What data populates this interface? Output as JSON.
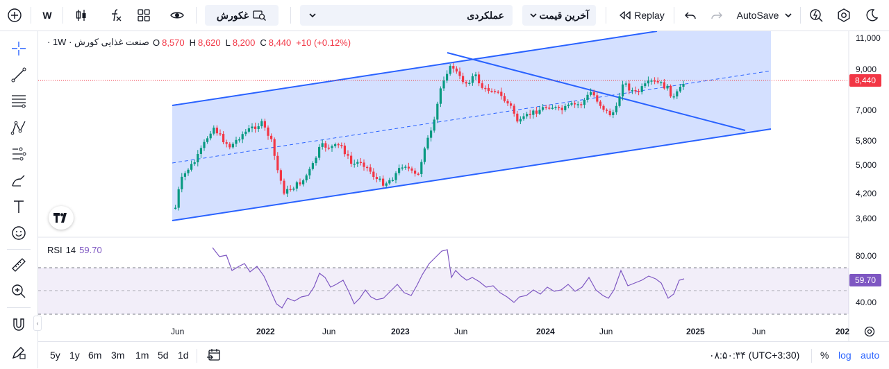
{
  "toolbar": {
    "interval": "W",
    "symbol": "غکورش",
    "layout": "عملکردی",
    "price_type": "آخرین قیمت",
    "replay": "Replay",
    "autosave": "AutoSave"
  },
  "legend": {
    "title": "صنعت غذایی کورش · 1W ·",
    "o_label": "O",
    "o": "8,570",
    "h_label": "H",
    "h": "8,620",
    "l_label": "L",
    "l": "8,200",
    "c_label": "C",
    "c": "8,440",
    "change": "+10 (+0.12%)"
  },
  "price_axis": {
    "ticks": [
      "11,000",
      "9,000",
      "7,000",
      "5,800",
      "5,000",
      "4,200",
      "3,600"
    ],
    "last_price": "8,440",
    "last_price_color": "#f23645"
  },
  "rsi": {
    "label": "RSI",
    "period": "14",
    "value": "59.70",
    "ticks": [
      "80.00",
      "40.00"
    ],
    "color": "#7e57c2"
  },
  "time_axis": {
    "labels": [
      "Jun",
      "2022",
      "Jun",
      "2023",
      "Jun",
      "2024",
      "Jun",
      "2025",
      "Jun",
      "202"
    ]
  },
  "bottom": {
    "ranges": [
      "5y",
      "1y",
      "6m",
      "3m",
      "1m",
      "5d",
      "1d"
    ],
    "clock": "۰۸:۵۰:۳۴ (UTC+3:30)",
    "percent": "%",
    "log": "log",
    "auto": "auto"
  },
  "colors": {
    "up": "#089981",
    "down": "#f23645",
    "channel": "#2962ff",
    "accent": "#2962ff"
  }
}
